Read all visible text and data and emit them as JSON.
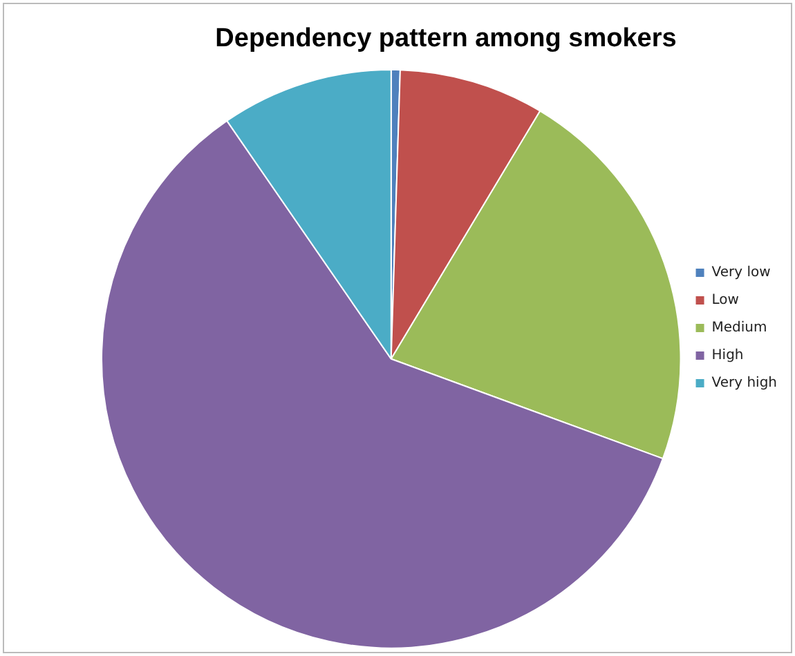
{
  "chart_data": {
    "type": "pie",
    "title": "Dependency pattern among smokers",
    "categories": [
      "Very low",
      "Low",
      "Medium",
      "High",
      "Very high"
    ],
    "values": [
      0.5,
      8.1,
      22.0,
      59.8,
      9.6
    ],
    "colors": [
      "#4f81bd",
      "#c0504d",
      "#9bbb59",
      "#8064a2",
      "#4bacc6"
    ],
    "legend": "right"
  }
}
